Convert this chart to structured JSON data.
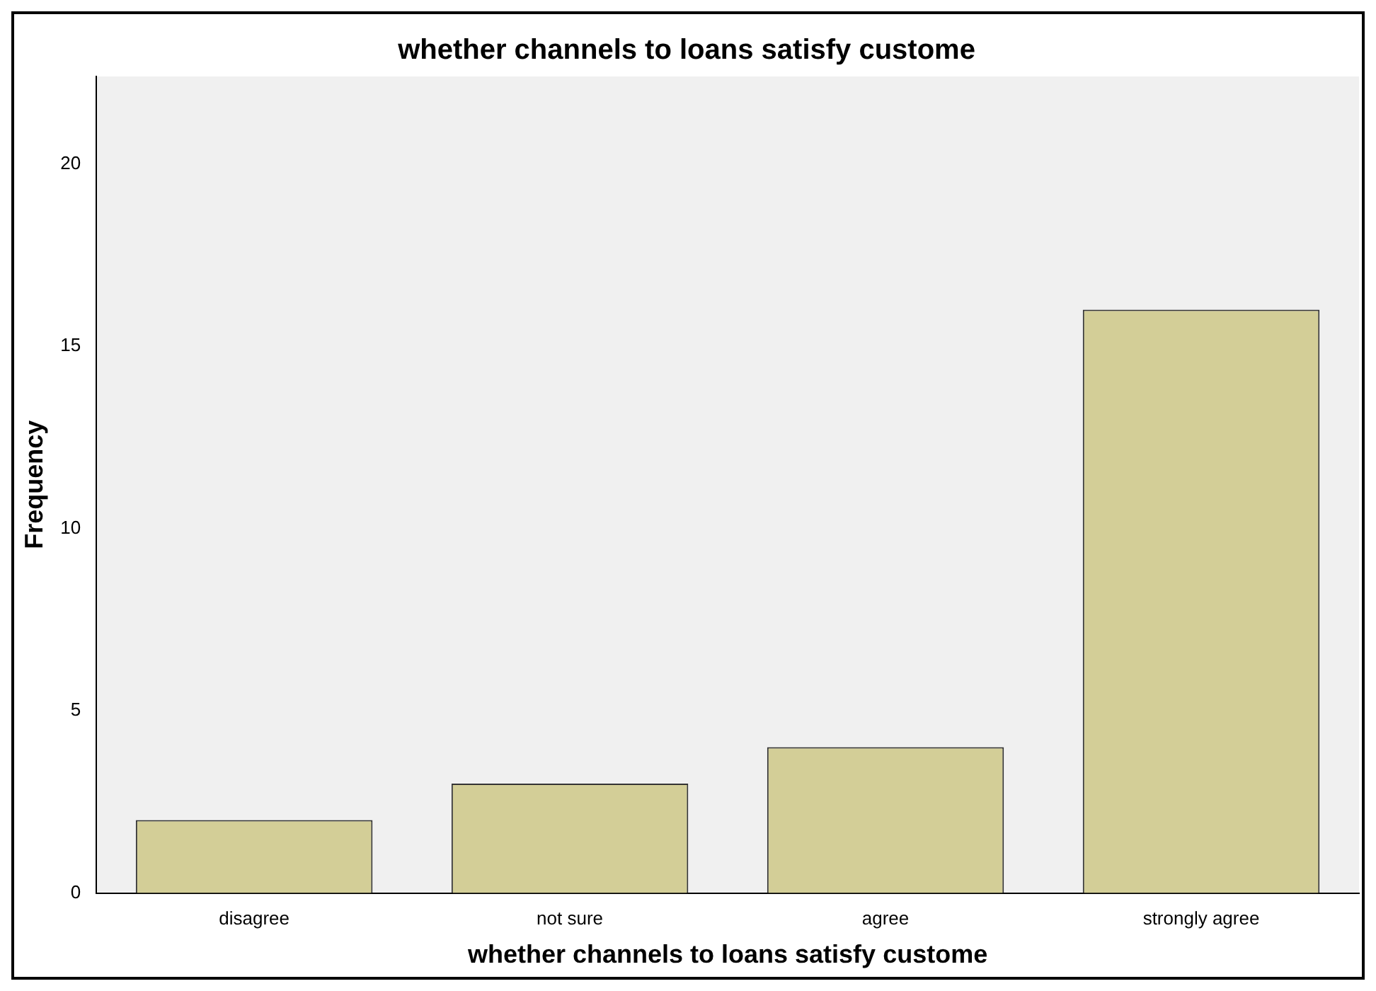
{
  "chart_data": {
    "type": "bar",
    "title": "whether channels to loans satisfy custome",
    "xlabel": "whether channels to loans satisfy custome",
    "ylabel": "Frequency",
    "categories": [
      "disagree",
      "not sure",
      "agree",
      "strongly agree"
    ],
    "values": [
      2,
      3,
      4,
      16
    ],
    "color": "#d3ce97",
    "ylim": [
      0,
      22.4
    ],
    "yticks": [
      0,
      5,
      10,
      15,
      20
    ]
  }
}
